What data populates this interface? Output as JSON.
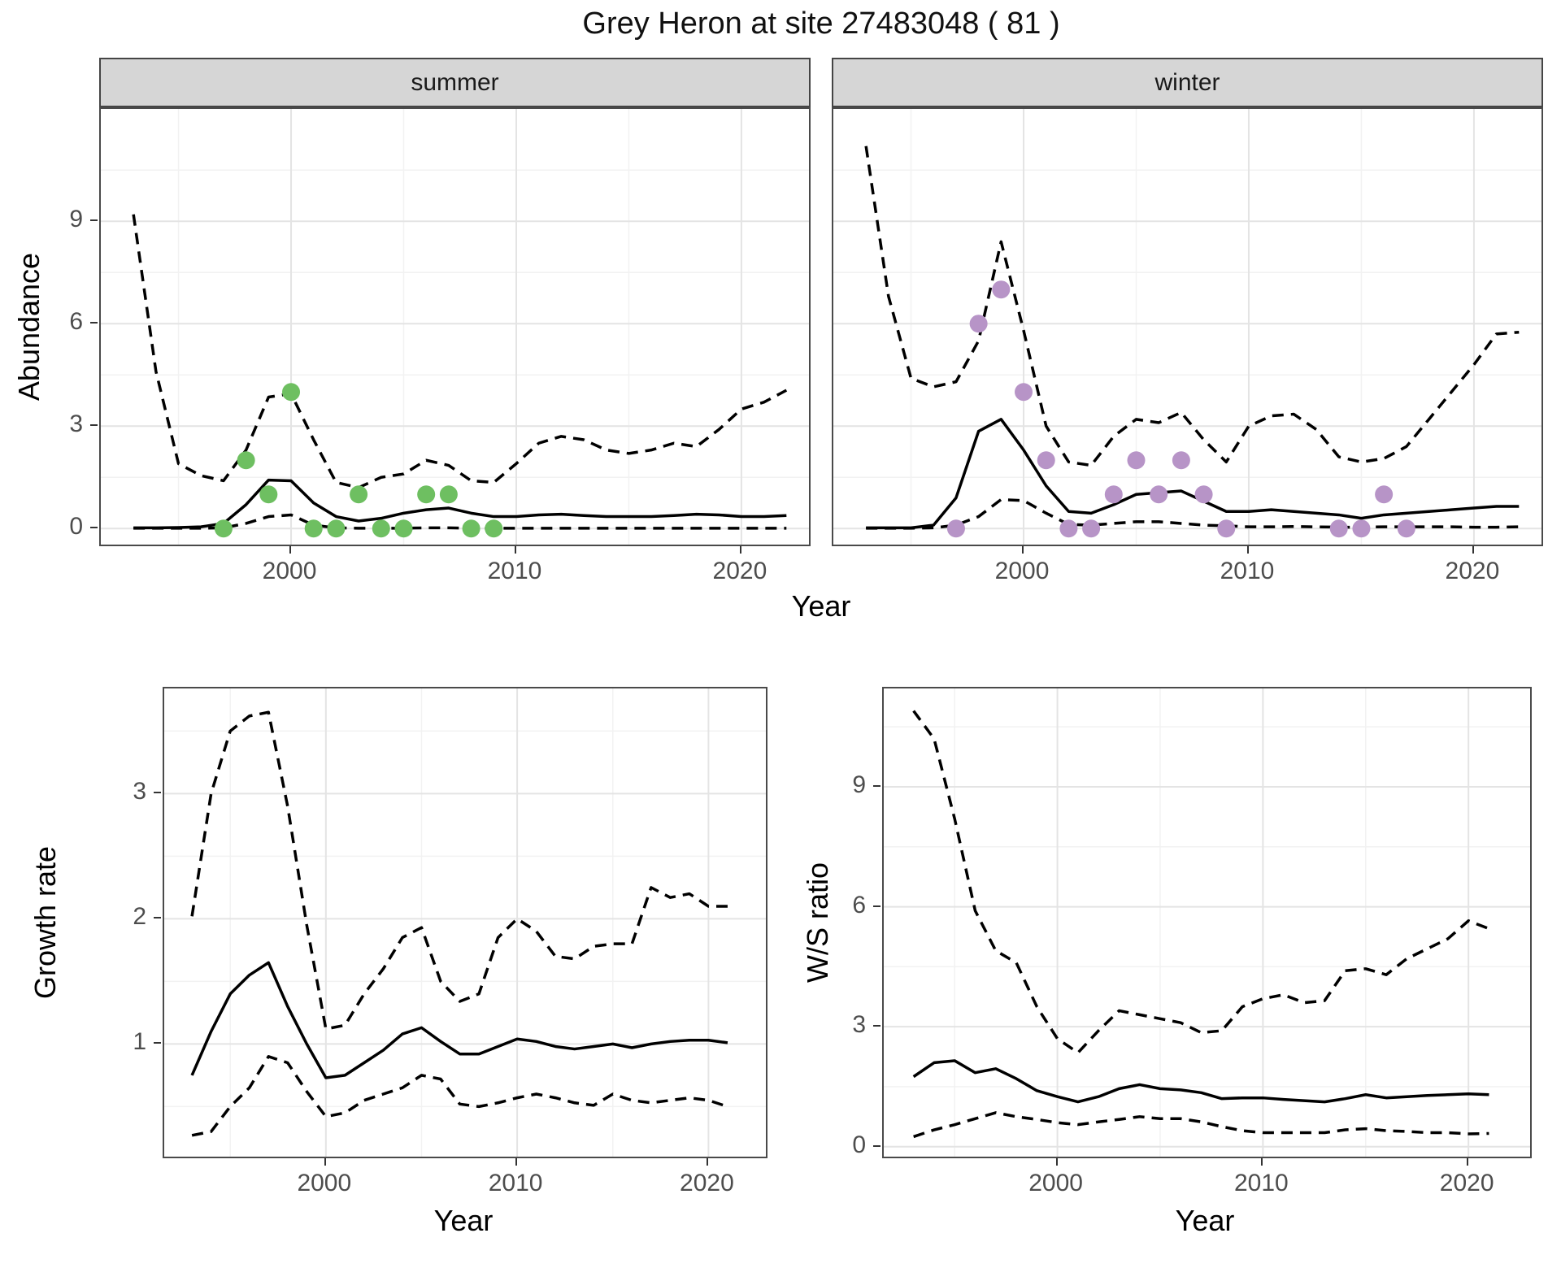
{
  "title": "Grey Heron at site 27483048 ( 81 )",
  "colors": {
    "summer_point": "#6EBF61",
    "winter_point": "#B794C7",
    "line": "#000000",
    "strip_bg": "#D6D6D6",
    "panel_border": "#4A4A4A",
    "grid_major": "#E4E4E4",
    "grid_minor": "#F2F2F2",
    "tick_text": "#4D4D4D"
  },
  "chart_data": [
    {
      "type": "line",
      "panel": "abundance-summer",
      "facet_label": "summer",
      "xlabel": "Year",
      "ylabel": "Abundance",
      "xlim": [
        1991.55,
        2023.0
      ],
      "ylim": [
        -0.47,
        12.29
      ],
      "x_ticks": [
        2000,
        2010,
        2020
      ],
      "y_ticks": [
        0,
        3,
        6,
        9
      ],
      "grid": "major+minor",
      "x": [
        1993,
        1994,
        1995,
        1996,
        1997,
        1998,
        1999,
        2000,
        2001,
        2002,
        2003,
        2004,
        2005,
        2006,
        2007,
        2008,
        2009,
        2010,
        2011,
        2012,
        2013,
        2014,
        2015,
        2016,
        2017,
        2018,
        2019,
        2020,
        2021,
        2022
      ],
      "series": [
        {
          "name": "upper-95ci",
          "style": "dashed",
          "values": [
            9.2,
            4.6,
            1.9,
            1.55,
            1.4,
            2.3,
            3.85,
            3.95,
            2.6,
            1.35,
            1.2,
            1.5,
            1.6,
            2.0,
            1.85,
            1.4,
            1.35,
            1.9,
            2.5,
            2.7,
            2.6,
            2.3,
            2.2,
            2.3,
            2.5,
            2.4,
            2.9,
            3.5,
            3.7,
            4.05
          ]
        },
        {
          "name": "median",
          "style": "solid",
          "values": [
            0.02,
            0.02,
            0.03,
            0.05,
            0.15,
            0.7,
            1.42,
            1.4,
            0.75,
            0.35,
            0.22,
            0.3,
            0.45,
            0.55,
            0.6,
            0.45,
            0.35,
            0.35,
            0.4,
            0.42,
            0.38,
            0.35,
            0.35,
            0.35,
            0.38,
            0.42,
            0.4,
            0.35,
            0.35,
            0.38
          ]
        },
        {
          "name": "lower-95ci",
          "style": "dashed",
          "values": [
            0.01,
            0.01,
            0.01,
            0.01,
            0.02,
            0.15,
            0.35,
            0.4,
            0.1,
            0.02,
            0.01,
            0.01,
            0.01,
            0.02,
            0.02,
            0.01,
            0.01,
            0.01,
            0.01,
            0.01,
            0.01,
            0.01,
            0.01,
            0.01,
            0.01,
            0.01,
            0.01,
            0.01,
            0.01,
            0.01
          ]
        }
      ],
      "points": {
        "name": "observed-summer-counts",
        "color": "#6EBF61",
        "x": [
          1997,
          1998,
          1999,
          2000,
          2001,
          2002,
          2003,
          2004,
          2005,
          2006,
          2007,
          2008,
          2009
        ],
        "y": [
          0,
          2,
          1,
          4,
          0,
          0,
          1,
          0,
          0,
          1,
          1,
          0,
          0
        ]
      }
    },
    {
      "type": "line",
      "panel": "abundance-winter",
      "facet_label": "winter",
      "xlabel": "Year",
      "ylabel": "Abundance",
      "xlim": [
        1991.55,
        2023.0
      ],
      "ylim": [
        -0.47,
        12.29
      ],
      "x_ticks": [
        2000,
        2010,
        2020
      ],
      "y_ticks": [
        0,
        3,
        6,
        9
      ],
      "grid": "major+minor",
      "x": [
        1993,
        1994,
        1995,
        1996,
        1997,
        1998,
        1999,
        2000,
        2001,
        2002,
        2003,
        2004,
        2005,
        2006,
        2007,
        2008,
        2009,
        2010,
        2011,
        2012,
        2013,
        2014,
        2015,
        2016,
        2017,
        2018,
        2019,
        2020,
        2021,
        2022
      ],
      "series": [
        {
          "name": "upper-95ci",
          "style": "dashed",
          "values": [
            11.2,
            6.8,
            4.4,
            4.15,
            4.3,
            5.5,
            8.4,
            5.8,
            3.0,
            1.95,
            1.85,
            2.7,
            3.2,
            3.1,
            3.4,
            2.6,
            1.95,
            3.0,
            3.3,
            3.35,
            2.9,
            2.1,
            1.95,
            2.05,
            2.4,
            3.2,
            4.0,
            4.8,
            5.7,
            5.75
          ]
        },
        {
          "name": "median",
          "style": "solid",
          "values": [
            0.02,
            0.02,
            0.02,
            0.1,
            0.9,
            2.85,
            3.2,
            2.3,
            1.25,
            0.5,
            0.45,
            0.7,
            1.0,
            1.05,
            1.1,
            0.8,
            0.5,
            0.5,
            0.55,
            0.5,
            0.45,
            0.4,
            0.3,
            0.4,
            0.45,
            0.5,
            0.55,
            0.6,
            0.65,
            0.65
          ]
        },
        {
          "name": "lower-95ci",
          "style": "dashed",
          "values": [
            0.01,
            0.01,
            0.01,
            0.02,
            0.1,
            0.35,
            0.85,
            0.82,
            0.45,
            0.12,
            0.1,
            0.15,
            0.2,
            0.2,
            0.15,
            0.1,
            0.08,
            0.05,
            0.05,
            0.06,
            0.05,
            0.04,
            0.04,
            0.05,
            0.05,
            0.05,
            0.05,
            0.04,
            0.04,
            0.05
          ]
        }
      ],
      "points": {
        "name": "observed-winter-counts",
        "color": "#B794C7",
        "x": [
          1997,
          1998,
          1999,
          2000,
          2001,
          2002,
          2003,
          2004,
          2005,
          2006,
          2007,
          2008,
          2009,
          2014,
          2015,
          2016,
          2017
        ],
        "y": [
          0,
          6,
          7,
          4,
          2,
          0,
          0,
          1,
          2,
          1,
          2,
          1,
          0,
          0,
          0,
          1,
          0
        ]
      }
    },
    {
      "type": "line",
      "panel": "growth-rate",
      "facet_label": "",
      "xlabel": "Year",
      "ylabel": "Growth rate",
      "xlim": [
        1991.55,
        2023.0
      ],
      "ylim": [
        0.1,
        3.84
      ],
      "x_ticks": [
        2000,
        2010,
        2020
      ],
      "y_ticks": [
        1,
        2,
        3
      ],
      "grid": "major+minor",
      "x": [
        1993,
        1994,
        1995,
        1996,
        1997,
        1998,
        1999,
        2000,
        2001,
        2002,
        2003,
        2004,
        2005,
        2006,
        2007,
        2008,
        2009,
        2010,
        2011,
        2012,
        2013,
        2014,
        2015,
        2016,
        2017,
        2018,
        2019,
        2020,
        2021
      ],
      "series": [
        {
          "name": "upper-95ci",
          "style": "dashed",
          "values": [
            2.02,
            3.0,
            3.5,
            3.62,
            3.65,
            2.9,
            1.95,
            1.12,
            1.15,
            1.4,
            1.6,
            1.85,
            1.93,
            1.5,
            1.34,
            1.4,
            1.85,
            2.0,
            1.9,
            1.7,
            1.68,
            1.78,
            1.8,
            1.8,
            2.25,
            2.17,
            2.2,
            2.1,
            2.1
          ]
        },
        {
          "name": "median",
          "style": "solid",
          "values": [
            0.75,
            1.1,
            1.4,
            1.55,
            1.65,
            1.3,
            1.0,
            0.73,
            0.75,
            0.85,
            0.95,
            1.08,
            1.13,
            1.02,
            0.92,
            0.92,
            0.98,
            1.04,
            1.02,
            0.98,
            0.96,
            0.98,
            1.0,
            0.97,
            1.0,
            1.02,
            1.03,
            1.03,
            1.01
          ]
        },
        {
          "name": "lower-95ci",
          "style": "dashed",
          "values": [
            0.27,
            0.3,
            0.5,
            0.65,
            0.9,
            0.85,
            0.62,
            0.42,
            0.45,
            0.55,
            0.6,
            0.65,
            0.75,
            0.72,
            0.52,
            0.5,
            0.53,
            0.57,
            0.6,
            0.57,
            0.53,
            0.51,
            0.6,
            0.55,
            0.53,
            0.55,
            0.57,
            0.55,
            0.5
          ]
        }
      ]
    },
    {
      "type": "line",
      "panel": "ws-ratio",
      "facet_label": "",
      "xlabel": "Year",
      "ylabel": "W/S ratio",
      "xlim": [
        1991.55,
        2023.0
      ],
      "ylim": [
        -0.25,
        11.46
      ],
      "x_ticks": [
        2000,
        2010,
        2020
      ],
      "y_ticks": [
        0,
        3,
        6,
        9
      ],
      "grid": "major+minor",
      "x": [
        1993,
        1994,
        1995,
        1996,
        1997,
        1998,
        1999,
        2000,
        2001,
        2002,
        2003,
        2004,
        2005,
        2006,
        2007,
        2008,
        2009,
        2010,
        2011,
        2012,
        2013,
        2014,
        2015,
        2016,
        2017,
        2018,
        2019,
        2020,
        2021
      ],
      "series": [
        {
          "name": "upper-95ci",
          "style": "dashed",
          "values": [
            10.9,
            10.2,
            8.2,
            5.9,
            4.9,
            4.6,
            3.5,
            2.7,
            2.35,
            2.9,
            3.4,
            3.3,
            3.2,
            3.1,
            2.85,
            2.9,
            3.5,
            3.7,
            3.8,
            3.6,
            3.65,
            4.4,
            4.45,
            4.3,
            4.7,
            4.95,
            5.2,
            5.65,
            5.45
          ]
        },
        {
          "name": "median",
          "style": "solid",
          "values": [
            1.75,
            2.1,
            2.15,
            1.85,
            1.95,
            1.7,
            1.4,
            1.25,
            1.12,
            1.25,
            1.45,
            1.55,
            1.45,
            1.42,
            1.35,
            1.2,
            1.22,
            1.22,
            1.18,
            1.15,
            1.12,
            1.2,
            1.3,
            1.22,
            1.25,
            1.28,
            1.3,
            1.32,
            1.3
          ]
        },
        {
          "name": "lower-95ci",
          "style": "dashed",
          "values": [
            0.25,
            0.42,
            0.55,
            0.7,
            0.85,
            0.75,
            0.68,
            0.6,
            0.55,
            0.62,
            0.68,
            0.75,
            0.7,
            0.7,
            0.62,
            0.5,
            0.4,
            0.35,
            0.35,
            0.35,
            0.35,
            0.42,
            0.45,
            0.4,
            0.38,
            0.35,
            0.35,
            0.32,
            0.33
          ]
        }
      ]
    }
  ]
}
